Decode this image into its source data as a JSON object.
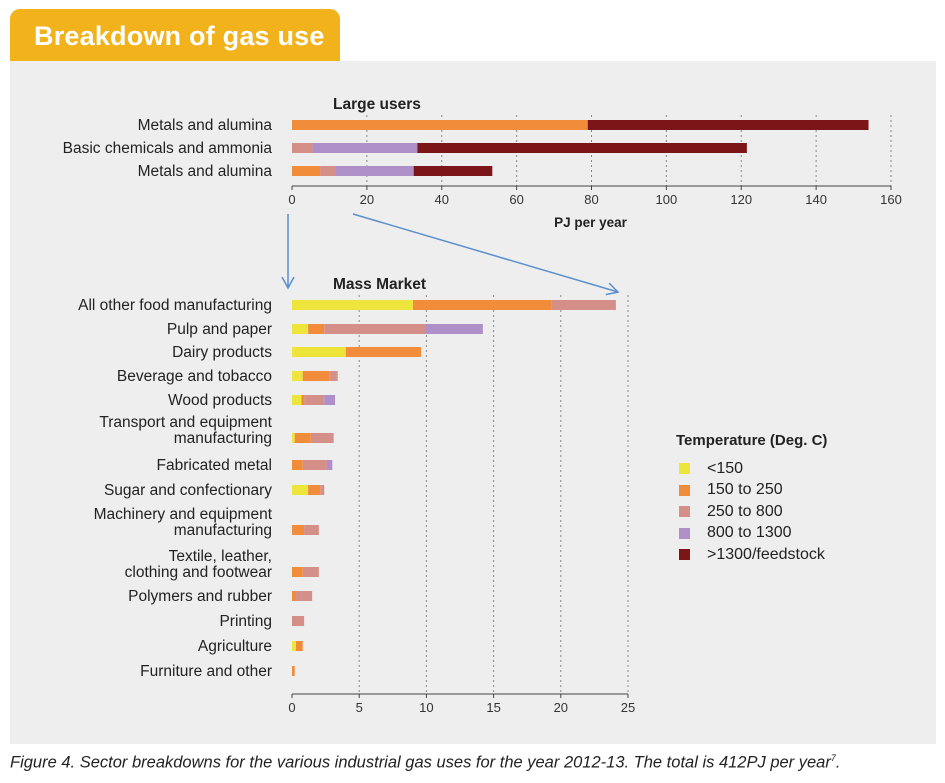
{
  "header": {
    "title": "Breakdown of gas use"
  },
  "caption": {
    "text": "Figure 4. Sector breakdowns for the various industrial gas uses for the year 2012-13. The total is 412PJ per year",
    "superscript": "7",
    "end": "."
  },
  "legend": {
    "title": "Temperature (Deg. C)",
    "items": [
      {
        "label": "<150",
        "color": "#ede53c"
      },
      {
        "label": "150 to 250",
        "color": "#f08c3a"
      },
      {
        "label": "250 to 800",
        "color": "#d58f89"
      },
      {
        "label": "800 to 1300",
        "color": "#ae8fc8"
      },
      {
        "label": ">1300/feedstock",
        "color": "#7b1517"
      }
    ]
  },
  "chart_data": [
    {
      "type": "bar",
      "orientation": "horizontal",
      "stacked": true,
      "title": "Large users",
      "xlabel": "PJ per year",
      "xlim": [
        0,
        160
      ],
      "xticks": [
        0,
        20,
        40,
        60,
        80,
        100,
        120,
        140,
        160
      ],
      "categories": [
        "Metals and alumina",
        "Basic chemicals and ammonia",
        "Metals and alumina"
      ],
      "series": [
        {
          "name": "<150",
          "values": [
            0,
            0,
            0
          ]
        },
        {
          "name": "150 to 250",
          "values": [
            79,
            0,
            7.5
          ]
        },
        {
          "name": "250 to 800",
          "values": [
            0,
            5.5,
            4
          ]
        },
        {
          "name": "800 to 1300",
          "values": [
            0,
            28,
            21
          ]
        },
        {
          "name": ">1300/feedstock",
          "values": [
            75,
            88,
            21
          ]
        }
      ]
    },
    {
      "type": "bar",
      "orientation": "horizontal",
      "stacked": true,
      "title": "Mass Market",
      "xlabel": "",
      "xlim": [
        0,
        25
      ],
      "xticks": [
        0,
        5,
        10,
        15,
        20,
        25
      ],
      "categories": [
        "All other food manufacturing",
        "Pulp and paper",
        "Dairy products",
        "Beverage and tobacco",
        "Wood products",
        "Transport and equipment\nmanufacturing",
        "Fabricated metal",
        "Sugar and confectionary",
        "Machinery and equipment\nmanufacturing",
        "Textile, leather,\nclothing and footwear",
        "Polymers and rubber",
        "Printing",
        "Agriculture",
        "Furniture and other"
      ],
      "series": [
        {
          "name": "<150",
          "values": [
            9.0,
            1.2,
            4.0,
            0.8,
            0.7,
            0.2,
            0,
            1.2,
            0,
            0,
            0,
            0,
            0.3,
            0
          ]
        },
        {
          "name": "150 to 250",
          "values": [
            10.3,
            1.2,
            5.6,
            2.0,
            0.2,
            1.2,
            0.8,
            0.9,
            0.9,
            0.8,
            0.3,
            0,
            0.5,
            0.2
          ]
        },
        {
          "name": "250 to 800",
          "values": [
            4.8,
            7.5,
            0,
            0.6,
            1.5,
            1.7,
            1.8,
            0.3,
            1.1,
            1.2,
            1.2,
            0.9,
            0,
            0
          ]
        },
        {
          "name": "800 to 1300",
          "values": [
            0,
            4.3,
            0,
            0,
            0.8,
            0,
            0.4,
            0,
            0,
            0,
            0,
            0,
            0,
            0
          ]
        },
        {
          "name": ">1300/feedstock",
          "values": [
            0,
            0,
            0,
            0,
            0,
            0,
            0,
            0,
            0,
            0,
            0,
            0,
            0,
            0
          ]
        }
      ]
    }
  ]
}
